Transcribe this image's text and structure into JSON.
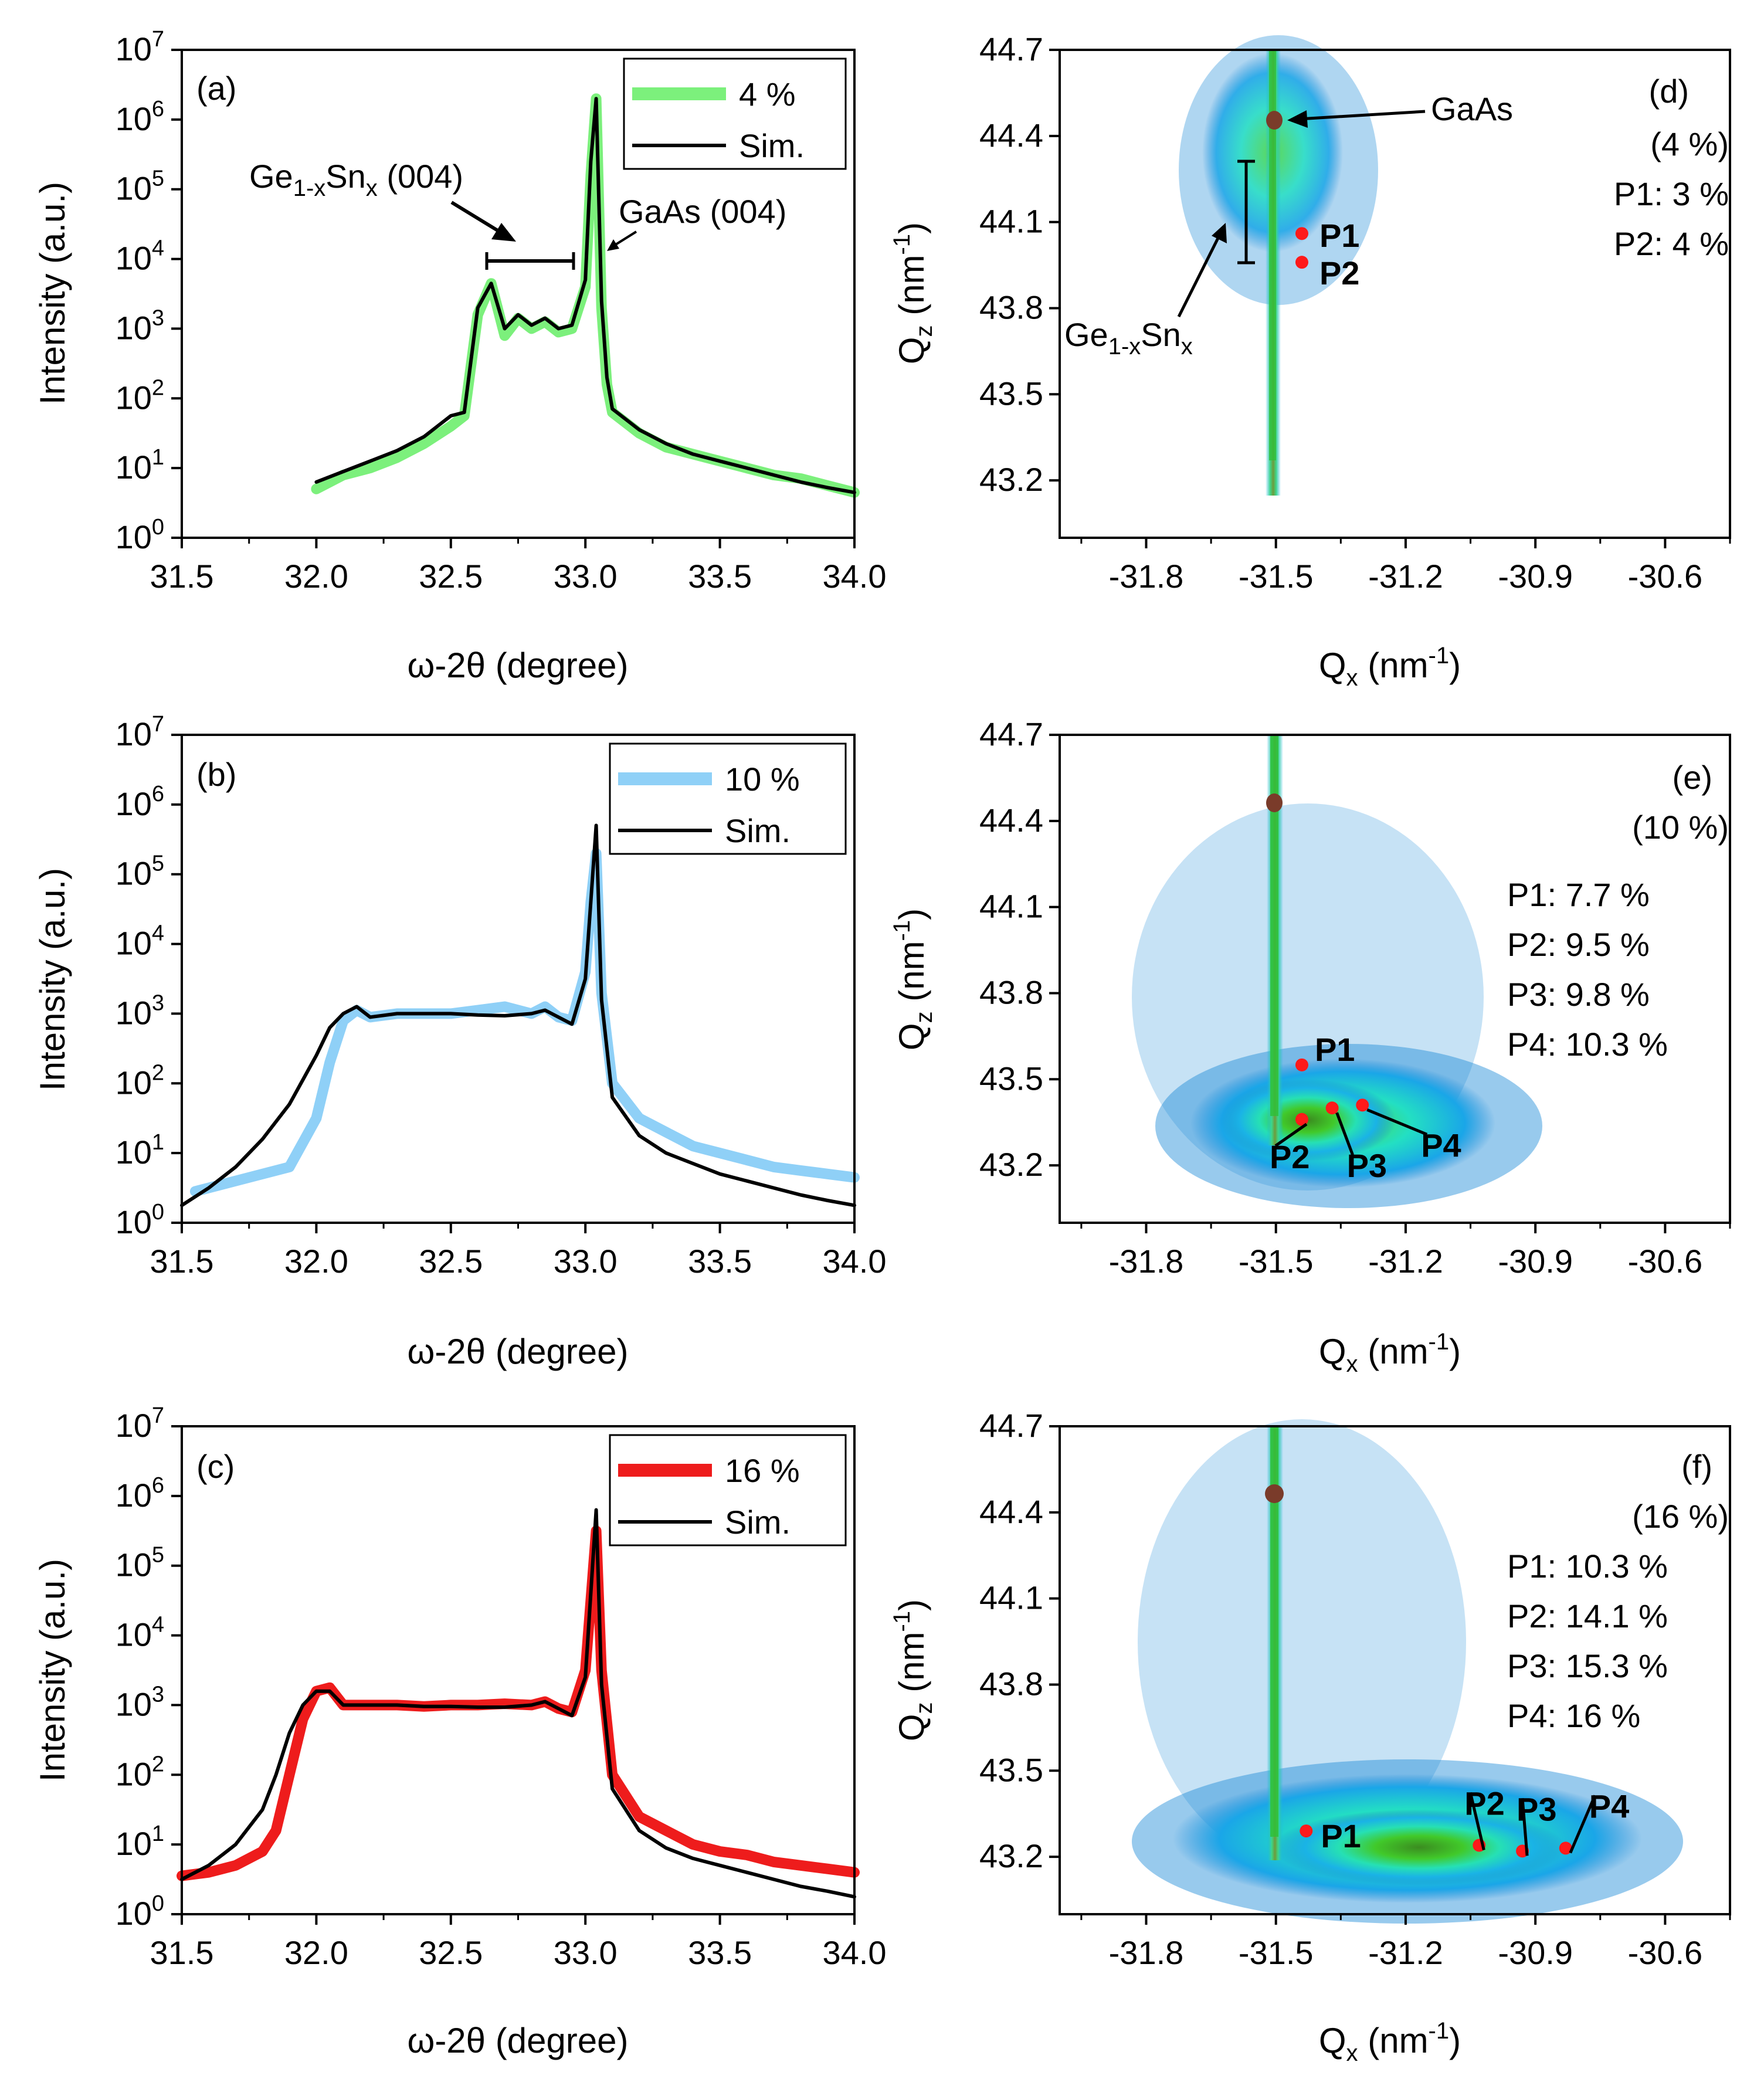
{
  "figure": {
    "colors": {
      "green": "#7cf07c",
      "blue": "#8fd0f7",
      "red": "#ee1c1c",
      "sim": "#000000",
      "peak_marker": "#ff1a1a"
    }
  },
  "chart_data": [
    {
      "id": "a",
      "type": "line",
      "panel_label": "(a)",
      "color_key": "green",
      "title": "",
      "xlabel": "ω-2θ (degree)",
      "ylabel": "Intensity (a.u.)",
      "xlim": [
        31.5,
        34.0
      ],
      "ylim_exp": [
        0,
        7
      ],
      "yscale": "log",
      "x_ticks": [
        "31.5",
        "32.0",
        "32.5",
        "33.0",
        "33.5",
        "34.0"
      ],
      "legend": [
        "4 %",
        "Sim."
      ],
      "annotations": {
        "layer": "Ge",
        "layer_sub": "1-x",
        "layer_el": "Sn",
        "layer_sub2": "x",
        "layer_hkl": " (004)",
        "substrate": "GaAs (004)"
      },
      "series": [
        {
          "name": "4 %",
          "x": [
            32.0,
            32.1,
            32.2,
            32.3,
            32.4,
            32.5,
            32.55,
            32.6,
            32.65,
            32.7,
            32.75,
            32.8,
            32.85,
            32.9,
            32.95,
            33.0,
            33.02,
            33.04,
            33.06,
            33.08,
            33.1,
            33.2,
            33.3,
            33.4,
            33.5,
            33.6,
            33.7,
            33.8,
            33.9,
            34.0
          ],
          "y_log10": [
            0.7,
            0.9,
            1.0,
            1.15,
            1.35,
            1.6,
            1.75,
            3.2,
            3.65,
            2.9,
            3.15,
            3.0,
            3.1,
            2.95,
            3.0,
            3.6,
            5.2,
            6.3,
            3.3,
            2.2,
            1.8,
            1.5,
            1.3,
            1.2,
            1.1,
            1.0,
            0.9,
            0.85,
            0.75,
            0.65
          ]
        },
        {
          "name": "Sim.",
          "x": [
            32.0,
            32.1,
            32.2,
            32.3,
            32.4,
            32.5,
            32.55,
            32.6,
            32.65,
            32.7,
            32.75,
            32.8,
            32.85,
            32.9,
            32.95,
            33.0,
            33.02,
            33.04,
            33.06,
            33.08,
            33.1,
            33.2,
            33.3,
            33.4,
            33.5,
            33.6,
            33.7,
            33.8,
            33.9,
            34.0
          ],
          "y_log10": [
            0.8,
            0.95,
            1.1,
            1.25,
            1.45,
            1.75,
            1.8,
            3.3,
            3.65,
            3.0,
            3.2,
            3.05,
            3.15,
            3.0,
            3.05,
            3.7,
            5.4,
            6.3,
            3.4,
            2.3,
            1.85,
            1.55,
            1.35,
            1.2,
            1.1,
            1.0,
            0.9,
            0.8,
            0.72,
            0.65
          ]
        }
      ]
    },
    {
      "id": "b",
      "type": "line",
      "panel_label": "(b)",
      "color_key": "blue",
      "title": "",
      "xlabel": "ω-2θ (degree)",
      "ylabel": "Intensity (a.u.)",
      "xlim": [
        31.5,
        34.0
      ],
      "ylim_exp": [
        0,
        7
      ],
      "yscale": "log",
      "x_ticks": [
        "31.5",
        "32.0",
        "32.5",
        "33.0",
        "33.5",
        "34.0"
      ],
      "legend": [
        "10 %",
        "Sim."
      ],
      "series": [
        {
          "name": "10 %",
          "x": [
            31.55,
            31.7,
            31.8,
            31.9,
            32.0,
            32.05,
            32.1,
            32.15,
            32.2,
            32.3,
            32.4,
            32.5,
            32.6,
            32.7,
            32.8,
            32.85,
            32.9,
            32.95,
            33.0,
            33.02,
            33.04,
            33.06,
            33.1,
            33.2,
            33.3,
            33.4,
            33.5,
            33.6,
            33.7,
            33.8,
            33.9,
            34.0
          ],
          "y_log10": [
            0.45,
            0.6,
            0.7,
            0.8,
            1.5,
            2.3,
            2.9,
            3.05,
            2.95,
            3.0,
            3.0,
            3.0,
            3.05,
            3.1,
            3.0,
            3.1,
            2.95,
            2.9,
            3.6,
            4.6,
            5.3,
            3.3,
            2.0,
            1.5,
            1.3,
            1.1,
            1.0,
            0.9,
            0.8,
            0.75,
            0.7,
            0.65
          ]
        },
        {
          "name": "Sim.",
          "x": [
            31.5,
            31.6,
            31.7,
            31.8,
            31.9,
            32.0,
            32.05,
            32.1,
            32.15,
            32.2,
            32.3,
            32.4,
            32.5,
            32.6,
            32.7,
            32.8,
            32.85,
            32.9,
            32.95,
            33.0,
            33.02,
            33.04,
            33.06,
            33.1,
            33.2,
            33.3,
            33.4,
            33.5,
            33.6,
            33.7,
            33.8,
            33.9,
            34.0
          ],
          "y_log10": [
            0.25,
            0.5,
            0.8,
            1.2,
            1.7,
            2.4,
            2.8,
            3.0,
            3.1,
            2.95,
            3.0,
            3.0,
            3.0,
            2.98,
            2.97,
            3.0,
            3.05,
            2.95,
            2.85,
            3.5,
            4.6,
            5.7,
            3.2,
            1.8,
            1.25,
            1.0,
            0.85,
            0.7,
            0.6,
            0.5,
            0.4,
            0.32,
            0.25
          ]
        }
      ]
    },
    {
      "id": "c",
      "type": "line",
      "panel_label": "(c)",
      "color_key": "red",
      "title": "",
      "xlabel": "ω-2θ (degree)",
      "ylabel": "Intensity (a.u.)",
      "xlim": [
        31.5,
        34.0
      ],
      "ylim_exp": [
        0,
        7
      ],
      "yscale": "log",
      "x_ticks": [
        "31.5",
        "32.0",
        "32.5",
        "33.0",
        "33.5",
        "34.0"
      ],
      "legend": [
        "16 %",
        "Sim."
      ],
      "series": [
        {
          "name": "16 %",
          "x": [
            31.5,
            31.6,
            31.7,
            31.8,
            31.85,
            31.9,
            31.95,
            32.0,
            32.05,
            32.1,
            32.2,
            32.3,
            32.4,
            32.5,
            32.6,
            32.7,
            32.8,
            32.85,
            32.9,
            32.95,
            33.0,
            33.02,
            33.04,
            33.06,
            33.1,
            33.2,
            33.3,
            33.4,
            33.5,
            33.6,
            33.7,
            33.8,
            33.9,
            34.0
          ],
          "y_log10": [
            0.55,
            0.6,
            0.7,
            0.9,
            1.2,
            2.0,
            2.8,
            3.2,
            3.25,
            3.0,
            3.0,
            3.0,
            2.98,
            3.0,
            3.0,
            3.02,
            3.0,
            3.05,
            2.95,
            2.9,
            3.5,
            4.5,
            5.5,
            3.5,
            2.0,
            1.4,
            1.2,
            1.0,
            0.9,
            0.85,
            0.75,
            0.7,
            0.65,
            0.6
          ]
        },
        {
          "name": "Sim.",
          "x": [
            31.5,
            31.6,
            31.7,
            31.8,
            31.85,
            31.9,
            31.95,
            32.0,
            32.05,
            32.1,
            32.2,
            32.3,
            32.4,
            32.5,
            32.6,
            32.7,
            32.8,
            32.85,
            32.9,
            32.95,
            33.0,
            33.02,
            33.04,
            33.06,
            33.1,
            33.2,
            33.3,
            33.4,
            33.5,
            33.6,
            33.7,
            33.8,
            33.9,
            34.0
          ],
          "y_log10": [
            0.5,
            0.7,
            1.0,
            1.5,
            2.0,
            2.6,
            3.0,
            3.2,
            3.2,
            3.0,
            3.0,
            3.0,
            2.98,
            2.98,
            2.97,
            2.97,
            3.0,
            3.05,
            2.95,
            2.85,
            3.4,
            4.6,
            5.8,
            3.3,
            1.8,
            1.2,
            0.95,
            0.8,
            0.7,
            0.6,
            0.5,
            0.4,
            0.33,
            0.25
          ]
        }
      ]
    },
    {
      "id": "d",
      "type": "heatmap",
      "panel_label": "(d)",
      "title": "",
      "xlabel": "Q",
      "xlabel_sub": "x",
      "xlabel_unit": " (nm",
      "xlabel_sup": "-1",
      "xlabel_close": ")",
      "ylabel": "Q",
      "ylabel_sub": "z",
      "ylabel_unit": " (nm",
      "ylabel_sup": "-1",
      "ylabel_close": ")",
      "xlim": [
        -32.0,
        -30.45
      ],
      "ylim": [
        43.0,
        44.7
      ],
      "x_ticks": [
        "-31.8",
        "-31.5",
        "-31.2",
        "-30.9",
        "-30.6"
      ],
      "y_ticks": [
        "43.2",
        "43.5",
        "43.8",
        "44.1",
        "44.4",
        "44.7"
      ],
      "composition": "(4 %)",
      "peak_labels": [
        "P1: 3 %",
        "P2: 4 %"
      ],
      "annotations": {
        "substrate": "GaAs",
        "layer": "Ge",
        "layer_sub": "1-x",
        "layer_el": "Sn",
        "layer_sub2": "x"
      },
      "peaks": [
        {
          "name": "P1",
          "qx": -31.44,
          "qz": 44.06
        },
        {
          "name": "P2",
          "qx": -31.44,
          "qz": 43.96
        }
      ],
      "substrate_peak": {
        "qx": -31.44,
        "qz": 44.45
      }
    },
    {
      "id": "e",
      "type": "heatmap",
      "panel_label": "(e)",
      "title": "",
      "xlabel": "Q",
      "xlabel_sub": "x",
      "xlabel_unit": " (nm",
      "xlabel_sup": "-1",
      "xlabel_close": ")",
      "ylabel": "Q",
      "ylabel_sub": "z",
      "ylabel_unit": " (nm",
      "ylabel_sup": "-1",
      "ylabel_close": ")",
      "xlim": [
        -32.0,
        -30.45
      ],
      "ylim": [
        43.0,
        44.7
      ],
      "x_ticks": [
        "-31.8",
        "-31.5",
        "-31.2",
        "-30.9",
        "-30.6"
      ],
      "y_ticks": [
        "43.2",
        "43.5",
        "43.8",
        "44.1",
        "44.4",
        "44.7"
      ],
      "composition": "(10 %)",
      "peak_labels": [
        "P1: 7.7 %",
        "P2: 9.5 %",
        "P3: 9.8 %",
        "P4: 10.3 %"
      ],
      "peaks": [
        {
          "name": "P1",
          "qx": -31.44,
          "qz": 43.55
        },
        {
          "name": "P2",
          "qx": -31.44,
          "qz": 43.36
        },
        {
          "name": "P3",
          "qx": -31.37,
          "qz": 43.4
        },
        {
          "name": "P4",
          "qx": -31.3,
          "qz": 43.41
        }
      ],
      "substrate_peak": {
        "qx": -31.44,
        "qz": 44.45
      }
    },
    {
      "id": "f",
      "type": "heatmap",
      "panel_label": "(f)",
      "title": "",
      "xlabel": "Q",
      "xlabel_sub": "x",
      "xlabel_unit": " (nm",
      "xlabel_sup": "-1",
      "xlabel_close": ")",
      "ylabel": "Q",
      "ylabel_sub": "z",
      "ylabel_unit": " (nm",
      "ylabel_sup": "-1",
      "ylabel_close": ")",
      "xlim": [
        -32.0,
        -30.45
      ],
      "ylim": [
        43.0,
        44.7
      ],
      "x_ticks": [
        "-31.8",
        "-31.5",
        "-31.2",
        "-30.9",
        "-30.6"
      ],
      "y_ticks": [
        "43.2",
        "43.5",
        "43.8",
        "44.1",
        "44.4",
        "44.7"
      ],
      "composition": "(16 %)",
      "peak_labels": [
        "P1: 10.3 %",
        "P2: 14.1 %",
        "P3: 15.3 %",
        "P4: 16 %"
      ],
      "peaks": [
        {
          "name": "P1",
          "qx": -31.43,
          "qz": 43.29
        },
        {
          "name": "P2",
          "qx": -31.03,
          "qz": 43.24
        },
        {
          "name": "P3",
          "qx": -30.93,
          "qz": 43.22
        },
        {
          "name": "P4",
          "qx": -30.83,
          "qz": 43.23
        }
      ],
      "substrate_peak": {
        "qx": -31.44,
        "qz": 44.45
      }
    }
  ]
}
